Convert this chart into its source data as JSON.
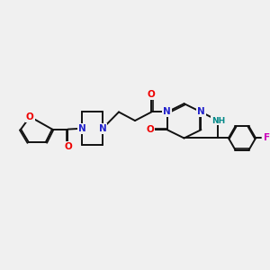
{
  "background_color": "#f0f0f0",
  "bond_color": "#111111",
  "bond_width": 1.4,
  "dbo": 0.055,
  "atom_colors": {
    "O": "#ee0000",
    "N": "#2222cc",
    "NH": "#008888",
    "F": "#cc00bb",
    "C": "#111111"
  },
  "fs": 7.5
}
